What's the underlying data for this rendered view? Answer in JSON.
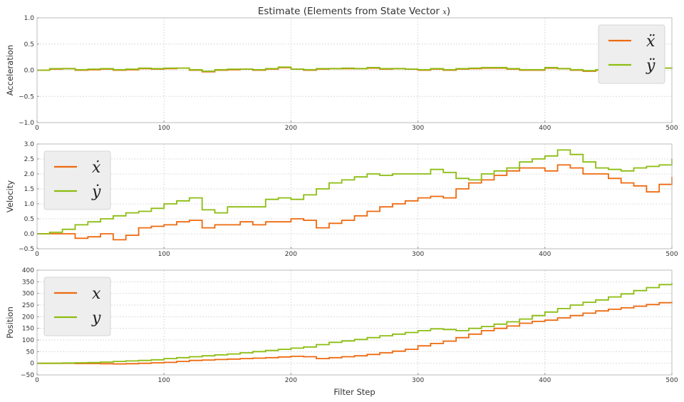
{
  "figure": {
    "title_text": "Estimate (Elements from State Vector ",
    "title_math": "x",
    "title_close": ")"
  },
  "colors": {
    "x_series": "#ee6a10",
    "y_series": "#8cbd12",
    "grid": "#dcdcdc",
    "spine": "#bcbcbc",
    "legend_bg": "#eeeeee",
    "legend_border": "#cccccc"
  },
  "chart_data": [
    {
      "type": "line",
      "title": "Estimate (Elements from State Vector x)",
      "xlabel": "",
      "ylabel": "Acceleration",
      "xlim": [
        0,
        500
      ],
      "ylim": [
        -1.0,
        1.0
      ],
      "xticks": [
        0,
        100,
        200,
        300,
        400,
        500
      ],
      "xtick_labels": [
        "0",
        "100",
        "200",
        "300",
        "400",
        "500"
      ],
      "yticks": [
        -1.0,
        -0.5,
        0.0,
        0.5,
        1.0
      ],
      "ytick_labels": [
        "−1.0",
        "−0.5",
        "0.0",
        "0.5",
        "1.0"
      ],
      "grid": true,
      "legend_position": "upper right",
      "step": true,
      "series": [
        {
          "name": "ẍ",
          "color": "#ee6a10",
          "x": [
            0,
            10,
            20,
            30,
            40,
            50,
            60,
            70,
            80,
            90,
            100,
            110,
            120,
            130,
            140,
            150,
            160,
            170,
            180,
            190,
            200,
            210,
            220,
            230,
            240,
            250,
            260,
            270,
            280,
            290,
            300,
            310,
            320,
            330,
            340,
            350,
            360,
            370,
            380,
            390,
            400,
            410,
            420,
            430,
            440,
            450,
            460,
            470,
            480,
            490,
            500
          ],
          "values": [
            0.0,
            0.02,
            0.03,
            0.0,
            0.01,
            0.02,
            0.0,
            0.01,
            0.03,
            0.02,
            0.03,
            0.04,
            0.0,
            -0.03,
            0.0,
            0.01,
            0.02,
            0.0,
            0.02,
            0.05,
            0.02,
            0.0,
            0.02,
            0.03,
            0.03,
            0.03,
            0.04,
            0.02,
            0.03,
            0.02,
            0.0,
            0.02,
            0.0,
            0.02,
            0.03,
            0.04,
            0.04,
            0.02,
            0.0,
            0.0,
            0.04,
            0.03,
            0.0,
            -0.02,
            0.0,
            0.02,
            0.03,
            0.04,
            0.04,
            0.04,
            0.05
          ]
        },
        {
          "name": "ÿ",
          "color": "#8cbd12",
          "x": [
            0,
            10,
            20,
            30,
            40,
            50,
            60,
            70,
            80,
            90,
            100,
            110,
            120,
            130,
            140,
            150,
            160,
            170,
            180,
            190,
            200,
            210,
            220,
            230,
            240,
            250,
            260,
            270,
            280,
            290,
            300,
            310,
            320,
            330,
            340,
            350,
            360,
            370,
            380,
            390,
            400,
            410,
            420,
            430,
            440,
            450,
            460,
            470,
            480,
            490,
            500
          ],
          "values": [
            0.0,
            0.03,
            0.03,
            0.01,
            0.02,
            0.03,
            0.01,
            0.02,
            0.04,
            0.03,
            0.04,
            0.04,
            0.01,
            -0.02,
            0.01,
            0.02,
            0.02,
            0.01,
            0.03,
            0.06,
            0.02,
            0.01,
            0.03,
            0.03,
            0.04,
            0.03,
            0.05,
            0.03,
            0.03,
            0.02,
            0.01,
            0.03,
            0.01,
            0.03,
            0.04,
            0.05,
            0.05,
            0.03,
            0.01,
            0.01,
            0.05,
            0.03,
            0.01,
            -0.01,
            0.01,
            0.03,
            0.03,
            0.04,
            0.04,
            0.04,
            0.05
          ]
        }
      ]
    },
    {
      "type": "line",
      "xlabel": "",
      "ylabel": "Velocity",
      "xlim": [
        0,
        500
      ],
      "ylim": [
        -0.5,
        3.0
      ],
      "xticks": [
        0,
        100,
        200,
        300,
        400,
        500
      ],
      "xtick_labels": [
        "0",
        "100",
        "200",
        "300",
        "400",
        "500"
      ],
      "yticks": [
        -0.5,
        0.0,
        0.5,
        1.0,
        1.5,
        2.0,
        2.5,
        3.0
      ],
      "ytick_labels": [
        "−0.5",
        "0.0",
        "0.5",
        "1.0",
        "1.5",
        "2.0",
        "2.5",
        "3.0"
      ],
      "grid": true,
      "legend_position": "upper left",
      "step": true,
      "series": [
        {
          "name": "ẋ",
          "color": "#ee6a10",
          "x": [
            0,
            10,
            20,
            30,
            40,
            50,
            60,
            70,
            80,
            90,
            100,
            110,
            120,
            130,
            140,
            150,
            160,
            170,
            180,
            190,
            200,
            210,
            220,
            230,
            240,
            250,
            260,
            270,
            280,
            290,
            300,
            310,
            320,
            330,
            340,
            350,
            360,
            370,
            380,
            390,
            400,
            410,
            420,
            430,
            440,
            450,
            460,
            470,
            480,
            490,
            500
          ],
          "values": [
            0.0,
            0.0,
            0.0,
            -0.15,
            -0.1,
            0.0,
            -0.2,
            -0.05,
            0.2,
            0.25,
            0.3,
            0.4,
            0.45,
            0.2,
            0.3,
            0.3,
            0.4,
            0.3,
            0.4,
            0.4,
            0.5,
            0.45,
            0.2,
            0.35,
            0.45,
            0.6,
            0.75,
            0.9,
            1.0,
            1.1,
            1.2,
            1.25,
            1.2,
            1.5,
            1.7,
            1.8,
            1.95,
            2.1,
            2.2,
            2.2,
            2.1,
            2.3,
            2.2,
            2.0,
            2.0,
            1.85,
            1.7,
            1.6,
            1.4,
            1.65,
            1.9
          ]
        },
        {
          "name": "ẏ",
          "color": "#8cbd12",
          "x": [
            0,
            10,
            20,
            30,
            40,
            50,
            60,
            70,
            80,
            90,
            100,
            110,
            120,
            130,
            140,
            150,
            160,
            170,
            180,
            190,
            200,
            210,
            220,
            230,
            240,
            250,
            260,
            270,
            280,
            290,
            300,
            310,
            320,
            330,
            340,
            350,
            360,
            370,
            380,
            390,
            400,
            410,
            420,
            430,
            440,
            450,
            460,
            470,
            480,
            490,
            500
          ],
          "values": [
            0.0,
            0.05,
            0.15,
            0.3,
            0.4,
            0.5,
            0.6,
            0.7,
            0.75,
            0.85,
            1.0,
            1.1,
            1.2,
            0.8,
            0.7,
            0.9,
            0.9,
            0.9,
            1.15,
            1.2,
            1.15,
            1.3,
            1.5,
            1.7,
            1.8,
            1.9,
            2.0,
            1.95,
            2.0,
            2.0,
            2.0,
            2.15,
            2.05,
            1.85,
            1.8,
            2.0,
            2.1,
            2.2,
            2.4,
            2.5,
            2.6,
            2.8,
            2.65,
            2.4,
            2.2,
            2.15,
            2.1,
            2.2,
            2.25,
            2.3,
            2.5
          ]
        }
      ]
    },
    {
      "type": "line",
      "xlabel": "Filter Step",
      "ylabel": "Position",
      "xlim": [
        0,
        500
      ],
      "ylim": [
        -50,
        400
      ],
      "xticks": [
        0,
        100,
        200,
        300,
        400,
        500
      ],
      "xtick_labels": [
        "0",
        "100",
        "200",
        "300",
        "400",
        "500"
      ],
      "yticks": [
        -50,
        0,
        50,
        100,
        150,
        200,
        250,
        300,
        350,
        400
      ],
      "ytick_labels": [
        "−50",
        "0",
        "50",
        "100",
        "150",
        "200",
        "250",
        "300",
        "350",
        "400"
      ],
      "grid": true,
      "legend_position": "upper left",
      "step": true,
      "series": [
        {
          "name": "x",
          "color": "#ee6a10",
          "x": [
            0,
            10,
            20,
            30,
            40,
            50,
            60,
            70,
            80,
            90,
            100,
            110,
            120,
            130,
            140,
            150,
            160,
            170,
            180,
            190,
            200,
            210,
            220,
            230,
            240,
            250,
            260,
            270,
            280,
            290,
            300,
            310,
            320,
            330,
            340,
            350,
            360,
            370,
            380,
            390,
            400,
            410,
            420,
            430,
            440,
            450,
            460,
            470,
            480,
            490,
            500
          ],
          "values": [
            0,
            0,
            0,
            -1,
            -1,
            -2,
            -3,
            -2,
            0,
            2,
            4,
            8,
            12,
            14,
            16,
            18,
            20,
            22,
            24,
            27,
            30,
            28,
            20,
            24,
            28,
            32,
            38,
            45,
            52,
            60,
            75,
            85,
            95,
            110,
            125,
            140,
            150,
            160,
            172,
            180,
            185,
            195,
            205,
            215,
            225,
            232,
            238,
            245,
            252,
            260,
            265
          ]
        },
        {
          "name": "y",
          "color": "#8cbd12",
          "x": [
            0,
            10,
            20,
            30,
            40,
            50,
            60,
            70,
            80,
            90,
            100,
            110,
            120,
            130,
            140,
            150,
            160,
            170,
            180,
            190,
            200,
            210,
            220,
            230,
            240,
            250,
            260,
            270,
            280,
            290,
            300,
            310,
            320,
            330,
            340,
            350,
            360,
            370,
            380,
            390,
            400,
            410,
            420,
            430,
            440,
            450,
            460,
            470,
            480,
            490,
            500
          ],
          "values": [
            0,
            0,
            1,
            2,
            3,
            5,
            8,
            10,
            12,
            15,
            20,
            24,
            28,
            32,
            36,
            40,
            45,
            50,
            55,
            60,
            65,
            70,
            80,
            90,
            96,
            102,
            110,
            118,
            125,
            132,
            140,
            148,
            145,
            140,
            150,
            158,
            168,
            178,
            190,
            205,
            220,
            235,
            250,
            262,
            272,
            285,
            298,
            312,
            325,
            338,
            345
          ]
        }
      ]
    }
  ]
}
